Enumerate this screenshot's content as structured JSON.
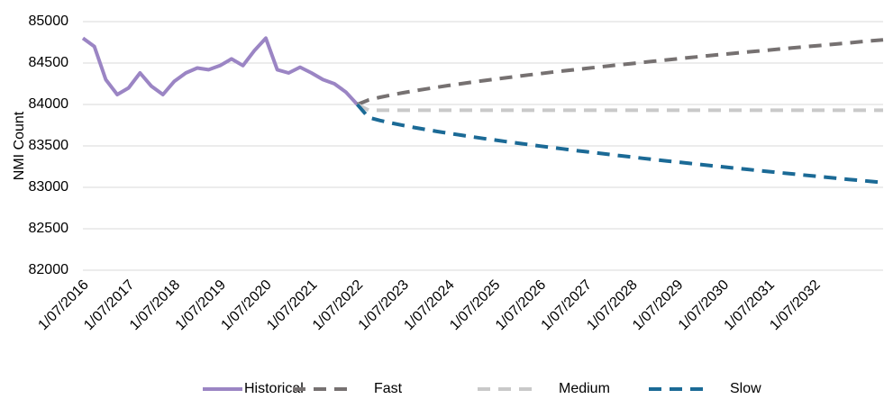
{
  "chart_data": {
    "type": "line",
    "y_label": "NMI Count",
    "categories": [
      "1/07/2016",
      null,
      null,
      null,
      "1/07/2017",
      null,
      null,
      null,
      "1/07/2018",
      null,
      null,
      null,
      "1/07/2019",
      null,
      null,
      null,
      "1/07/2020",
      null,
      null,
      null,
      "1/07/2021",
      null,
      null,
      null,
      "1/07/2022",
      null,
      null,
      null,
      "1/07/2023",
      null,
      null,
      null,
      "1/07/2024",
      null,
      null,
      null,
      "1/07/2025",
      null,
      null,
      null,
      "1/07/2026",
      null,
      null,
      null,
      "1/07/2027",
      null,
      null,
      null,
      "1/07/2028",
      null,
      null,
      null,
      "1/07/2029",
      null,
      null,
      null,
      "1/07/2030",
      null,
      null,
      null,
      "1/07/2031",
      null,
      null,
      null,
      "1/07/2032",
      null,
      null,
      null,
      null,
      null,
      null
    ],
    "series": [
      {
        "name": "Historical",
        "color": "#9b85c4",
        "dashed": false,
        "values": [
          84800,
          84700,
          84300,
          84120,
          84200,
          84380,
          84220,
          84120,
          84280,
          84380,
          84440,
          84420,
          84470,
          84550,
          84470,
          84650,
          84800,
          84420,
          84380,
          84450,
          84380,
          84300,
          84250,
          84150,
          84000,
          null,
          null,
          null,
          null,
          null,
          null,
          null,
          null,
          null,
          null,
          null,
          null,
          null,
          null,
          null,
          null,
          null,
          null,
          null,
          null,
          null,
          null,
          null,
          null,
          null,
          null,
          null,
          null,
          null,
          null,
          null,
          null,
          null,
          null,
          null,
          null,
          null,
          null,
          null,
          null,
          null,
          null,
          null,
          null,
          null,
          null
        ]
      },
      {
        "name": "Fast",
        "color": "#767171",
        "dashed": true,
        "values": [
          null,
          null,
          null,
          null,
          null,
          null,
          null,
          null,
          null,
          null,
          null,
          null,
          null,
          null,
          null,
          null,
          null,
          null,
          null,
          null,
          null,
          null,
          null,
          null,
          84000,
          84054,
          84087,
          84115,
          84141,
          84165,
          84187,
          84209,
          84229,
          84249,
          84268,
          84287,
          84304,
          84322,
          84339,
          84356,
          84372,
          84389,
          84404,
          84420,
          84435,
          84450,
          84465,
          84480,
          84494,
          84509,
          84523,
          84537,
          84551,
          84565,
          84578,
          84592,
          84605,
          84618,
          84631,
          84644,
          84657,
          84670,
          84682,
          84695,
          84707,
          84719,
          84732,
          84744,
          84756,
          84768,
          84780
        ]
      },
      {
        "name": "Medium",
        "color": "#c9c9c9",
        "dashed": true,
        "values": [
          null,
          null,
          null,
          null,
          null,
          null,
          null,
          null,
          null,
          null,
          null,
          null,
          null,
          null,
          null,
          null,
          null,
          null,
          null,
          null,
          null,
          null,
          null,
          null,
          84000,
          83930,
          83930,
          83930,
          83930,
          83930,
          83930,
          83930,
          83930,
          83930,
          83930,
          83930,
          83930,
          83930,
          83930,
          83930,
          83930,
          83930,
          83930,
          83930,
          83930,
          83930,
          83930,
          83930,
          83930,
          83930,
          83930,
          83930,
          83930,
          83930,
          83930,
          83930,
          83930,
          83930,
          83930,
          83930,
          83930,
          83930,
          83930,
          83930,
          83930,
          83930,
          83930,
          83930,
          83930,
          83930,
          83930
        ]
      },
      {
        "name": "Slow",
        "color": "#1b6a96",
        "dashed": true,
        "values": [
          null,
          null,
          null,
          null,
          null,
          null,
          null,
          null,
          null,
          null,
          null,
          null,
          null,
          null,
          null,
          null,
          null,
          null,
          null,
          null,
          null,
          null,
          null,
          null,
          84000,
          83842,
          83806,
          83776,
          83748,
          83722,
          83698,
          83674,
          83653,
          83631,
          83611,
          83590,
          83572,
          83552,
          83534,
          83516,
          83498,
          83480,
          83464,
          83446,
          83430,
          83414,
          83398,
          83382,
          83366,
          83350,
          83335,
          83320,
          83305,
          83290,
          83276,
          83261,
          83247,
          83233,
          83219,
          83204,
          83190,
          83176,
          83163,
          83149,
          83136,
          83123,
          83109,
          83096,
          83084,
          83071,
          83058
        ]
      }
    ],
    "ylim": [
      82000,
      85000
    ],
    "yticks": [
      82000,
      82500,
      83000,
      83500,
      84000,
      84500,
      85000
    ],
    "grid": true,
    "legend": "bottom"
  }
}
